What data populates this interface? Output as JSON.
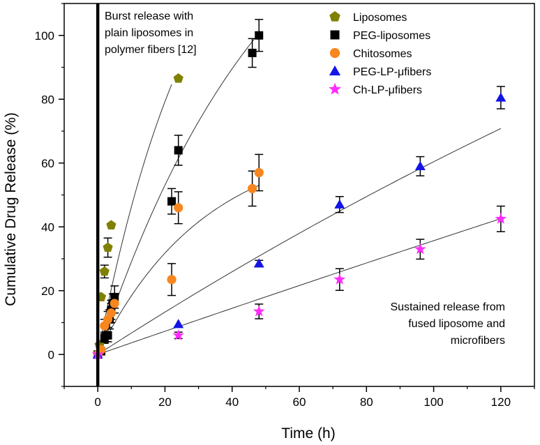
{
  "chart_data": {
    "type": "scatter",
    "xlabel": "Time (h)",
    "ylabel": "Cumulative Drug Release (%)",
    "xlim": [
      -10,
      130
    ],
    "ylim": [
      -10,
      110
    ],
    "xticks": [
      0,
      20,
      40,
      60,
      80,
      100,
      120
    ],
    "yticks": [
      0,
      20,
      40,
      60,
      80,
      100
    ],
    "xtick_labels": [
      "0",
      "20",
      "40",
      "60",
      "80",
      "100",
      "120"
    ],
    "ytick_labels": [
      "0",
      "20",
      "40",
      "60",
      "80",
      "100"
    ],
    "vertical_line_x": 0,
    "legend_position": "top-right",
    "annotations": [
      {
        "id": "burst",
        "lines": [
          "Burst release with",
          "plain liposomes in",
          "polymer fibers [12]"
        ]
      },
      {
        "id": "sustained",
        "lines": [
          "Sustained release from",
          "fused liposome and",
          "microfibers"
        ]
      }
    ],
    "series": [
      {
        "name": "Liposomes",
        "color": "#808000",
        "marker": "pentagon",
        "points": [
          {
            "x": 0,
            "y": 0,
            "err": 0
          },
          {
            "x": 0.5,
            "y": 3,
            "err": 0
          },
          {
            "x": 1,
            "y": 18,
            "err": 0
          },
          {
            "x": 2,
            "y": 26,
            "err": 2
          },
          {
            "x": 3,
            "y": 33.5,
            "err": 3
          },
          {
            "x": 4,
            "y": 40.5,
            "err": 0
          },
          {
            "x": 24,
            "y": 86.5,
            "err": 0
          }
        ],
        "fit": {
          "A": 161.3,
          "b": 0.0338,
          "x_end": 22
        }
      },
      {
        "name": "PEG-liposomes",
        "color": "#000000",
        "marker": "square",
        "points": [
          {
            "x": 0,
            "y": 0,
            "err": 0
          },
          {
            "x": 1,
            "y": 1,
            "err": 0
          },
          {
            "x": 2,
            "y": 5,
            "err": 1.5
          },
          {
            "x": 2.5,
            "y": 6,
            "err": 2
          },
          {
            "x": 3,
            "y": 6,
            "err": 2
          },
          {
            "x": 3.5,
            "y": 11,
            "err": 3
          },
          {
            "x": 4,
            "y": 14,
            "err": 3
          },
          {
            "x": 4.5,
            "y": 16,
            "err": 3
          },
          {
            "x": 5,
            "y": 18,
            "err": 3.5
          },
          {
            "x": 22,
            "y": 48,
            "err": 4
          },
          {
            "x": 24,
            "y": 64,
            "err": 4.7
          },
          {
            "x": 46,
            "y": 94.5,
            "err": 4.5
          },
          {
            "x": 48,
            "y": 100,
            "err": 5
          }
        ],
        "fit": {
          "A": 170.0,
          "b": 0.0187,
          "x_end": 47
        }
      },
      {
        "name": "Chitosomes",
        "color": "#f7861e",
        "marker": "circle",
        "points": [
          {
            "x": 0,
            "y": 0,
            "err": 0
          },
          {
            "x": 1,
            "y": 1.5,
            "err": 0
          },
          {
            "x": 2,
            "y": 9,
            "err": 2
          },
          {
            "x": 3,
            "y": 11,
            "err": 2.5
          },
          {
            "x": 4,
            "y": 13,
            "err": 3
          },
          {
            "x": 5,
            "y": 16,
            "err": 3
          },
          {
            "x": 22,
            "y": 23.5,
            "err": 5
          },
          {
            "x": 24,
            "y": 46,
            "err": 5
          },
          {
            "x": 46,
            "y": 52,
            "err": 5.5
          },
          {
            "x": 48,
            "y": 57,
            "err": 5.7
          }
        ],
        "fit": {
          "A": 68.0,
          "b": 0.0315,
          "x_end": 48
        }
      },
      {
        "name": "PEG-LP-μfibers",
        "color": "#1414e6",
        "marker": "triangle",
        "points": [
          {
            "x": 0,
            "y": 0,
            "err": 0
          },
          {
            "x": 24,
            "y": 9.5,
            "err": 0
          },
          {
            "x": 48,
            "y": 28.5,
            "err": 1
          },
          {
            "x": 72,
            "y": 47,
            "err": 2.5
          },
          {
            "x": 96,
            "y": 59,
            "err": 3
          },
          {
            "x": 120,
            "y": 80.5,
            "err": 3.5
          }
        ],
        "fit": {
          "A": 280.0,
          "b": 0.00243,
          "x_end": 120
        }
      },
      {
        "name": "Ch-LP-μfibers",
        "color": "#ff2cff",
        "marker": "star",
        "points": [
          {
            "x": 0,
            "y": 0,
            "err": 0
          },
          {
            "x": 24,
            "y": 6,
            "err": 1
          },
          {
            "x": 48,
            "y": 13.5,
            "err": 2.3
          },
          {
            "x": 72,
            "y": 23.5,
            "err": 3.4
          },
          {
            "x": 96,
            "y": 33,
            "err": 3.1
          },
          {
            "x": 120,
            "y": 42.5,
            "err": 4
          }
        ],
        "fit": {
          "A": 720.0,
          "b": 0.000508,
          "x_end": 120
        }
      }
    ]
  }
}
